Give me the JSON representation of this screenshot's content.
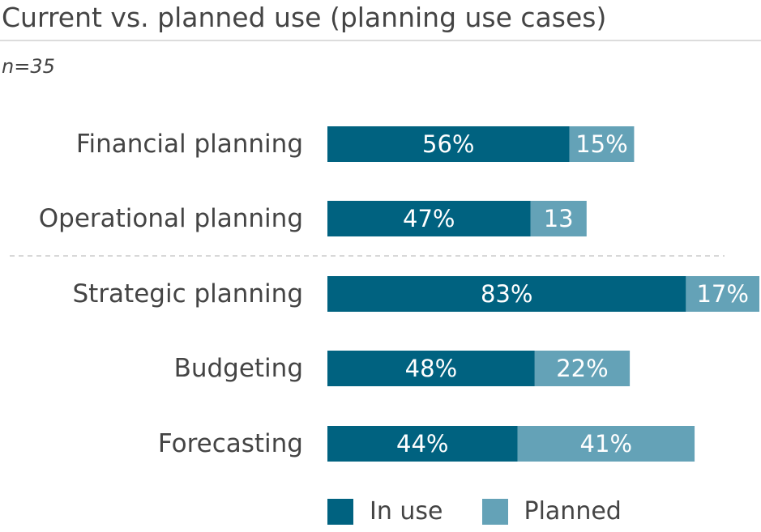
{
  "title": "Current vs. planned use (planning use cases)",
  "subtitle": "n=35",
  "colors": {
    "in_use": "#006280",
    "planned": "#64a2b7",
    "label": "#444444",
    "divider": "#cccccc"
  },
  "legend": [
    {
      "label": "In use",
      "color": "#006280"
    },
    {
      "label": "Planned",
      "color": "#64a2b7"
    }
  ],
  "chart_data": {
    "type": "bar",
    "orientation": "horizontal",
    "stacked": true,
    "categories": [
      "Financial planning",
      "Operational planning",
      "Strategic planning",
      "Budgeting",
      "Forecasting"
    ],
    "series": [
      {
        "name": "In use",
        "values": [
          56,
          47,
          83,
          48,
          44
        ],
        "labels": [
          "56%",
          "47%",
          "83%",
          "48%",
          "44%"
        ]
      },
      {
        "name": "Planned",
        "values": [
          15,
          13,
          17,
          22,
          41
        ],
        "labels": [
          "15%",
          "13",
          "17%",
          "22%",
          "41%"
        ]
      }
    ],
    "xlim": [
      0,
      100
    ],
    "grid": false,
    "divider_after_index": 1,
    "legend_position": "bottom"
  }
}
